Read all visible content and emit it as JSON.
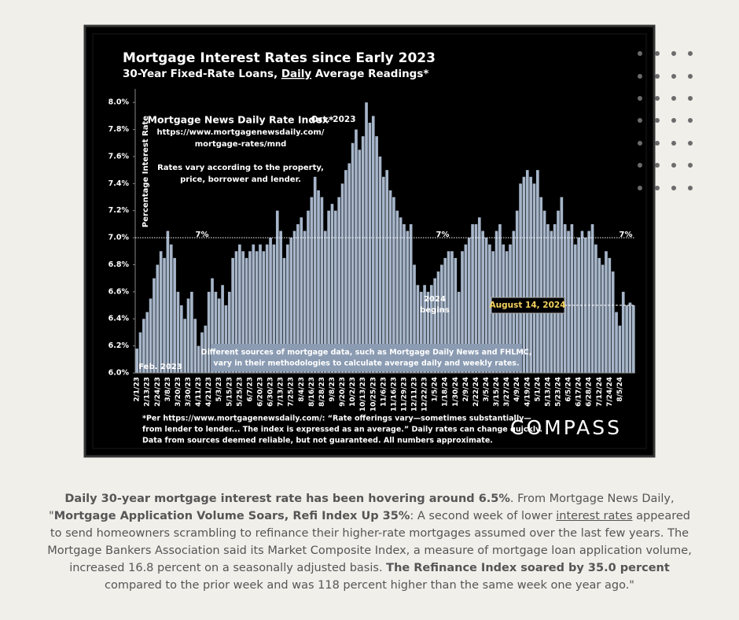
{
  "chart_data": {
    "type": "bar",
    "title": "Mortgage Interest Rates since Early 2023",
    "subtitle": [
      "30-Year Fixed-Rate Loans, ",
      "Daily",
      " Average Readings*"
    ],
    "y_label": "Percentage Interest Rate",
    "color": "#a7b6ca",
    "ylim": [
      6.0,
      8.1
    ],
    "yticks": [
      {
        "value": 6.0,
        "label": "6.0%"
      },
      {
        "value": 6.2,
        "label": "6.2%"
      },
      {
        "value": 6.4,
        "label": "6.4%"
      },
      {
        "value": 6.6,
        "label": "6.6%"
      },
      {
        "value": 6.8,
        "label": "6.8%"
      },
      {
        "value": 7.0,
        "label": "7.0%"
      },
      {
        "value": 7.2,
        "label": "7.2%"
      },
      {
        "value": 7.4,
        "label": "7.4%"
      },
      {
        "value": 7.6,
        "label": "7.6%"
      },
      {
        "value": 7.8,
        "label": "7.8%"
      },
      {
        "value": 8.0,
        "label": "8.0%"
      }
    ],
    "categories": [
      "2/1/23",
      null,
      null,
      "2/13/23",
      null,
      null,
      "2/24/23",
      null,
      null,
      "3/8/23",
      null,
      null,
      "3/20/23",
      null,
      null,
      "3/30/23",
      null,
      null,
      "4/11/23",
      null,
      null,
      "4/21/23",
      null,
      null,
      "5/3/23",
      null,
      null,
      "5/15/23",
      null,
      null,
      "5/25/23",
      null,
      null,
      "6/7/23",
      null,
      null,
      "6/20/23",
      null,
      null,
      "6/30/23",
      null,
      null,
      "7/13/23",
      null,
      null,
      "7/25/23",
      null,
      null,
      "8/4/23",
      null,
      null,
      "8/16/23",
      null,
      null,
      "8/28/23",
      null,
      null,
      "9/8/23",
      null,
      null,
      "9/20/23",
      null,
      null,
      "10/2/23",
      null,
      null,
      "10/13/23",
      null,
      null,
      "10/25/23",
      null,
      null,
      "11/6/23",
      null,
      null,
      "11/16/23",
      null,
      null,
      "11/29/23",
      null,
      null,
      "12/11/23",
      null,
      null,
      "12/22/23",
      null,
      null,
      "1/5/24",
      null,
      null,
      "1/18/24",
      null,
      null,
      "1/30/24",
      null,
      null,
      "2/9/24",
      null,
      null,
      "2/22/24",
      null,
      null,
      "3/5/24",
      null,
      null,
      "3/15/24",
      null,
      null,
      "3/27/24",
      null,
      null,
      "4/9/24",
      null,
      null,
      "4/19/24",
      null,
      null,
      "5/1/24",
      null,
      null,
      "5/13/24",
      null,
      null,
      "5/23/24",
      null,
      null,
      "6/5/24",
      null,
      null,
      "6/17/24",
      null,
      null,
      "6/28/24",
      null,
      null,
      "7/12/24",
      null,
      null,
      "7/24/24",
      null,
      null,
      "8/5/24",
      null,
      null,
      null,
      null
    ],
    "values": [
      6.18,
      6.3,
      6.4,
      6.45,
      6.55,
      6.7,
      6.8,
      6.9,
      6.85,
      7.05,
      6.95,
      6.85,
      6.6,
      6.5,
      6.4,
      6.55,
      6.6,
      6.4,
      6.2,
      6.3,
      6.35,
      6.6,
      6.7,
      6.6,
      6.55,
      6.65,
      6.5,
      6.6,
      6.85,
      6.9,
      6.95,
      6.9,
      6.85,
      6.9,
      6.95,
      6.9,
      6.95,
      6.9,
      6.95,
      7.0,
      6.95,
      7.2,
      7.05,
      6.85,
      6.95,
      7.0,
      7.05,
      7.1,
      7.15,
      7.05,
      7.2,
      7.3,
      7.45,
      7.35,
      7.3,
      7.05,
      7.2,
      7.25,
      7.2,
      7.3,
      7.4,
      7.5,
      7.55,
      7.7,
      7.8,
      7.65,
      7.75,
      8.0,
      7.85,
      7.9,
      7.75,
      7.6,
      7.45,
      7.5,
      7.35,
      7.3,
      7.2,
      7.15,
      7.1,
      7.05,
      7.1,
      6.8,
      6.65,
      6.6,
      6.65,
      6.6,
      6.65,
      6.7,
      6.75,
      6.8,
      6.85,
      6.9,
      6.9,
      6.85,
      6.6,
      6.9,
      6.95,
      7.0,
      7.1,
      7.1,
      7.15,
      7.05,
      7.0,
      6.95,
      6.9,
      7.05,
      7.1,
      6.95,
      6.9,
      6.95,
      7.05,
      7.2,
      7.4,
      7.45,
      7.5,
      7.45,
      7.4,
      7.5,
      7.3,
      7.2,
      7.1,
      7.05,
      7.1,
      7.2,
      7.3,
      7.1,
      7.05,
      7.1,
      6.95,
      7.0,
      7.05,
      7.0,
      7.05,
      7.1,
      6.95,
      6.85,
      6.8,
      6.9,
      6.85,
      6.75,
      6.45,
      6.35,
      6.6,
      6.5,
      6.52,
      6.5
    ],
    "reference_line": {
      "value": 7.0,
      "labels": [
        "7%",
        "7%",
        "7%"
      ]
    },
    "current": {
      "label": "August 14, 2024",
      "value": 6.5
    },
    "annotations": [
      "Mortgage News Daily Rate Index*",
      "https://www.mortgagenewsdaily.com/",
      "mortgage-rates/mnd",
      "Rates vary according to the property,",
      "price, borrower and lender.",
      "Oct. 2023",
      "2024",
      "begins",
      "Feb. 2023"
    ],
    "note_box": [
      "Different sources of mortgage data, such as Mortgage Daily News and FHLMC,",
      "vary in their methodologies to calculate average daily and weekly rates."
    ],
    "footnote": [
      "*Per https://www.mortgagenewsdaily.com/: “Rate offerings vary—sometimes substantially—",
      "from lender to lender... The index is expressed as an average.” Daily rates can change quickly.",
      "Data from sources deemed reliable, but not guaranteed. All numbers approximate."
    ],
    "logo": "COMPASS"
  },
  "caption": [
    {
      "text": "Daily 30-year mortgage interest rate has been hovering around 6.5%",
      "bold": true
    },
    {
      "text": ". From Mortgage News Daily, \""
    },
    {
      "text": "Mortgage Application Volume Soars, Refi Index Up 35%",
      "bold": true
    },
    {
      "text": ":  A second week of lower "
    },
    {
      "text": "interest rates",
      "underline": true
    },
    {
      "text": " appeared to send homeowners scrambling to refinance their higher-rate mortgages assumed over the last few years. The Mortgage Bankers Association said its Market Composite Index, a measure of mortgage loan application volume, increased 16.8 percent on a seasonally adjusted basis. "
    },
    {
      "text": "The Refinance Index soared by 35.0 percent",
      "bold": true
    },
    {
      "text": " compared to the prior week and was 118 percent higher than the same week one year ago.\""
    }
  ]
}
